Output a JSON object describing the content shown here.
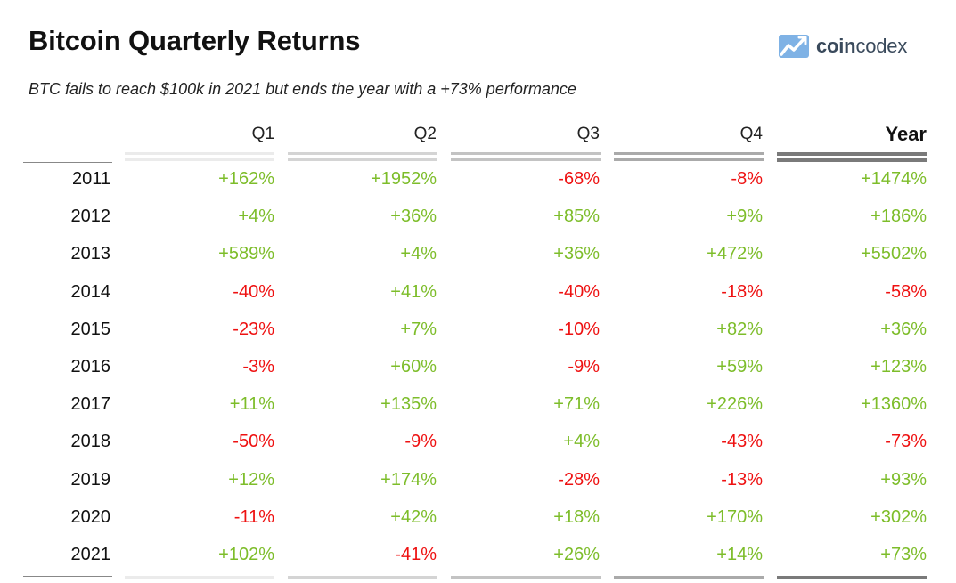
{
  "title": "Bitcoin Quarterly Returns",
  "subtitle": "BTC fails to reach $100k in 2021 but ends the year with a +73% performance",
  "logo": {
    "bold": "coin",
    "regular": "codex"
  },
  "colors": {
    "positive": "#7dbd2a",
    "negative": "#ee1111",
    "rules": [
      "#ebebeb",
      "#d4d4d4",
      "#c3c3c3",
      "#aaaaaa",
      "#7a7a7a"
    ]
  },
  "chart_data": {
    "type": "table",
    "title": "Bitcoin Quarterly Returns",
    "subtitle": "BTC fails to reach $100k in 2021 but ends the year with a +73% performance",
    "columns": [
      "Q1",
      "Q2",
      "Q3",
      "Q4",
      "Year"
    ],
    "rows": [
      {
        "label": "2011",
        "values": [
          "+162%",
          "+1952%",
          "-68%",
          "-8%",
          "+1474%"
        ]
      },
      {
        "label": "2012",
        "values": [
          "+4%",
          "+36%",
          "+85%",
          "+9%",
          "+186%"
        ]
      },
      {
        "label": "2013",
        "values": [
          "+589%",
          "+4%",
          "+36%",
          "+472%",
          "+5502%"
        ]
      },
      {
        "label": "2014",
        "values": [
          "-40%",
          "+41%",
          "-40%",
          "-18%",
          "-58%"
        ]
      },
      {
        "label": "2015",
        "values": [
          "-23%",
          "+7%",
          "-10%",
          "+82%",
          "+36%"
        ]
      },
      {
        "label": "2016",
        "values": [
          "-3%",
          "+60%",
          "-9%",
          "+59%",
          "+123%"
        ]
      },
      {
        "label": "2017",
        "values": [
          "+11%",
          "+135%",
          "+71%",
          "+226%",
          "+1360%"
        ]
      },
      {
        "label": "2018",
        "values": [
          "-50%",
          "-9%",
          "+4%",
          "-43%",
          "-73%"
        ]
      },
      {
        "label": "2019",
        "values": [
          "+12%",
          "+174%",
          "-28%",
          "-13%",
          "+93%"
        ]
      },
      {
        "label": "2020",
        "values": [
          "-11%",
          "+42%",
          "+18%",
          "+170%",
          "+302%"
        ]
      },
      {
        "label": "2021",
        "values": [
          "+102%",
          "-41%",
          "+26%",
          "+14%",
          "+73%"
        ]
      }
    ]
  }
}
